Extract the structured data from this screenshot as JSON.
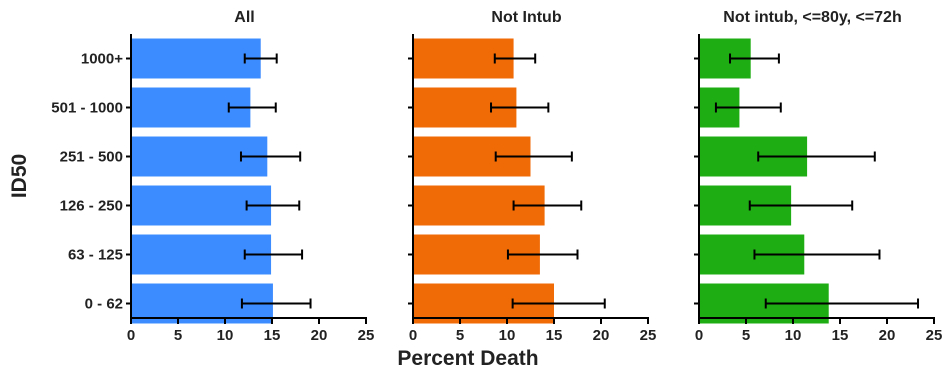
{
  "chart_data": {
    "type": "bar",
    "orientation": "horizontal",
    "ylabel": "ID50",
    "xlabel": "Percent Death",
    "categories": [
      "1000+",
      "501 - 1000",
      "251 - 500",
      "126 - 250",
      "63 - 125",
      "0 - 62"
    ],
    "xlim": [
      0,
      25
    ],
    "xticks": [
      "0",
      "5",
      "10",
      "15",
      "20",
      "25"
    ],
    "grid": false,
    "panels": [
      {
        "title": "All",
        "color": "#3d8cff",
        "values": [
          13.8,
          12.7,
          14.5,
          14.9,
          14.9,
          15.1
        ],
        "err_low": [
          12.1,
          10.4,
          11.7,
          12.3,
          12.1,
          11.8
        ],
        "err_high": [
          15.5,
          15.4,
          18.0,
          17.9,
          18.2,
          19.1
        ]
      },
      {
        "title": "Not Intub",
        "color": "#f06a05",
        "values": [
          10.7,
          11.0,
          12.5,
          14.0,
          13.5,
          15.0
        ],
        "err_low": [
          8.7,
          8.3,
          8.8,
          10.7,
          10.1,
          10.6
        ],
        "err_high": [
          13.0,
          14.4,
          16.9,
          17.9,
          17.5,
          20.4
        ]
      },
      {
        "title": "Not intub, <=80y, <=72h",
        "color": "#1fad14",
        "values": [
          5.5,
          4.3,
          11.5,
          9.8,
          11.2,
          13.8
        ],
        "err_low": [
          3.3,
          1.8,
          6.3,
          5.4,
          5.9,
          7.1
        ],
        "err_high": [
          8.5,
          8.7,
          18.7,
          16.3,
          19.2,
          23.3
        ]
      }
    ]
  }
}
